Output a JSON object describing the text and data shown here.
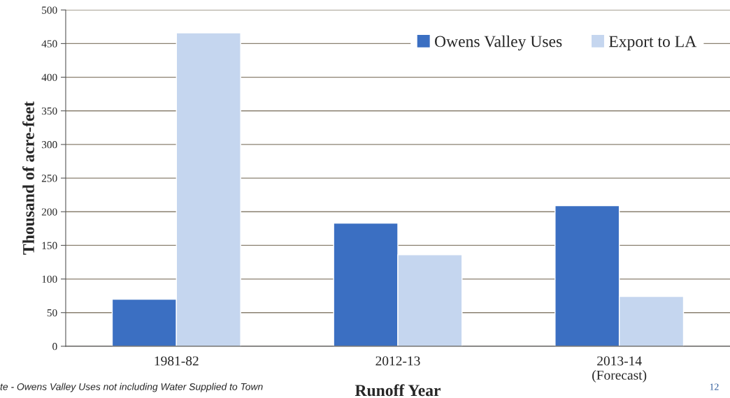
{
  "chart_data": {
    "type": "bar",
    "xlabel": "Runoff Year",
    "ylabel": "Thousand of acre-feet",
    "categories": [
      "1981-82",
      "2012-13",
      "2013-14\n(Forecast)"
    ],
    "series": [
      {
        "name": "Owens Valley Uses",
        "color": "#3b6fc2",
        "values": [
          70,
          183,
          209
        ]
      },
      {
        "name": "Export to LA",
        "color": "#c5d6ef",
        "values": [
          466,
          136,
          74
        ]
      }
    ],
    "ylim": [
      0,
      500
    ],
    "yticks": [
      0,
      50,
      100,
      150,
      200,
      250,
      300,
      350,
      400,
      450,
      500
    ],
    "grid": "y",
    "legend": "top right",
    "annotations": [
      "te - Owens Valley Uses not including Water Supplied to Town",
      "12"
    ]
  }
}
